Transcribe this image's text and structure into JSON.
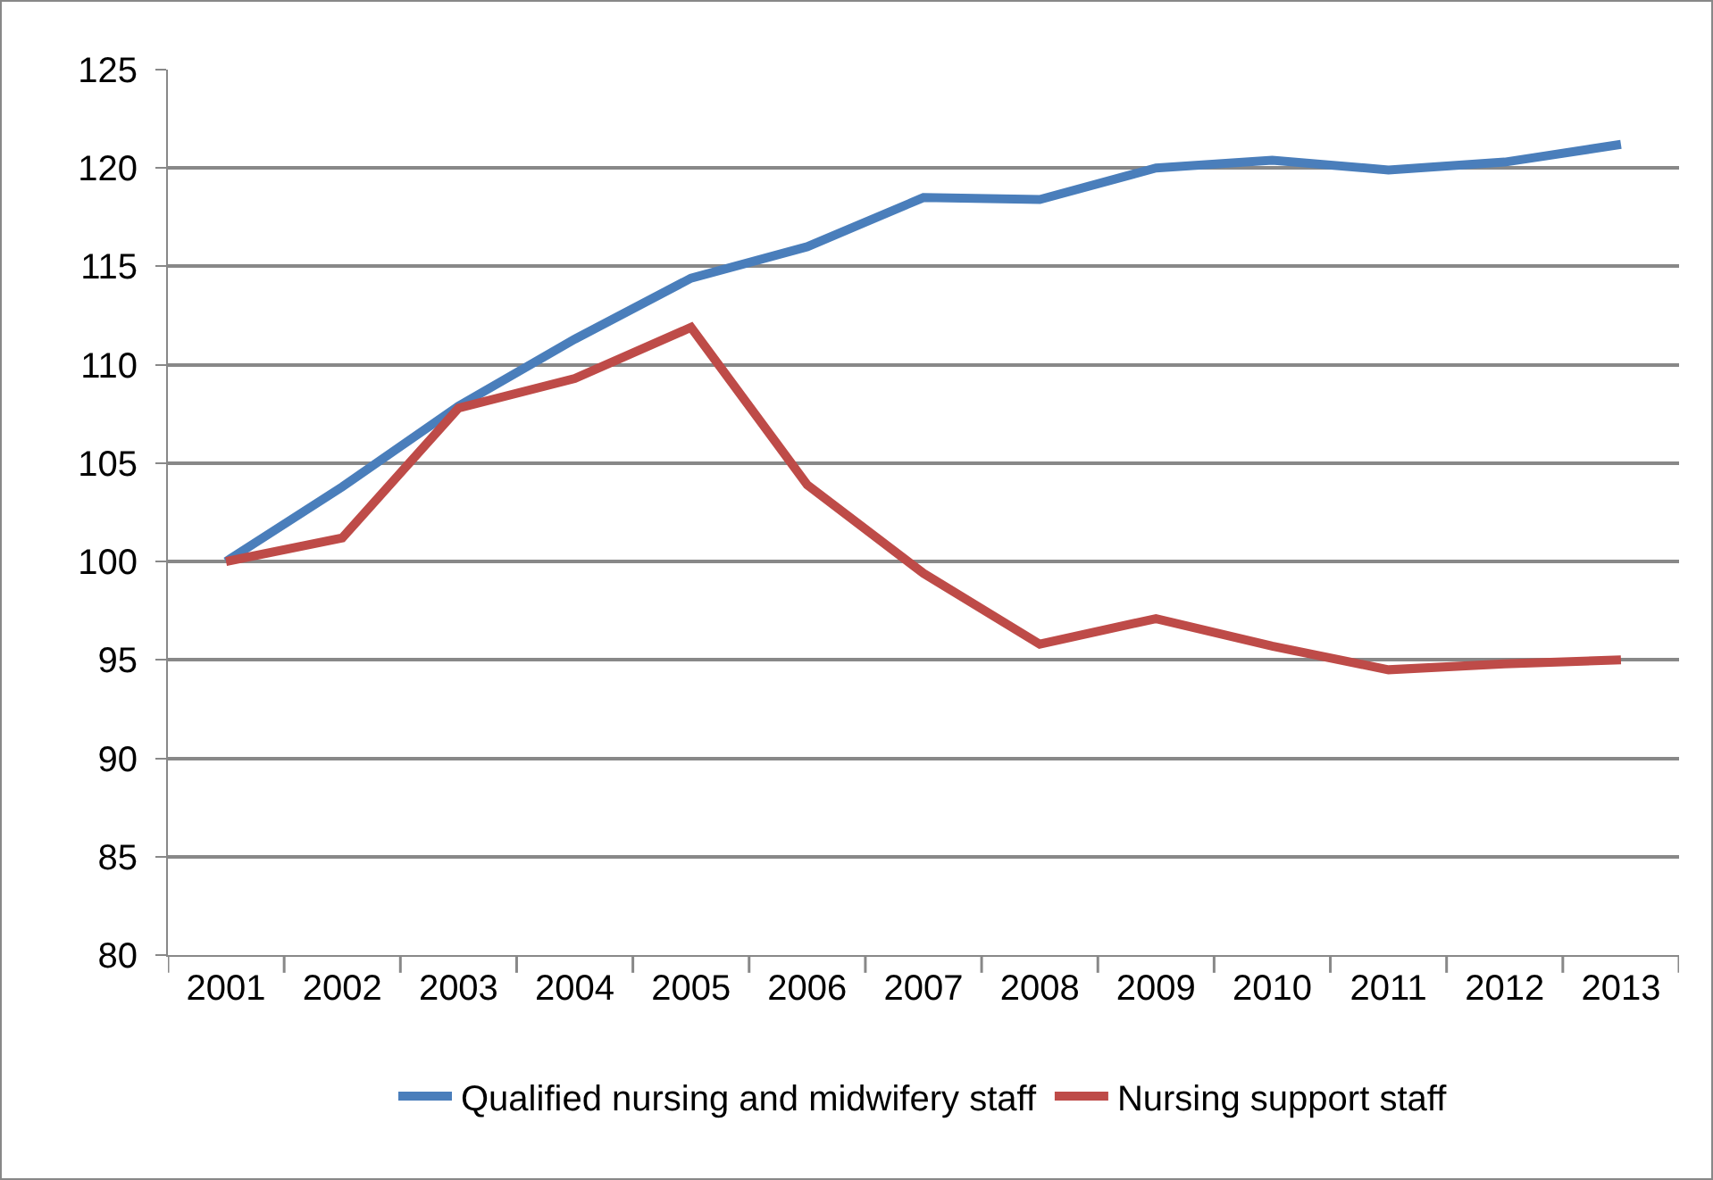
{
  "chart_data": {
    "type": "line",
    "categories": [
      "2001",
      "2002",
      "2003",
      "2004",
      "2005",
      "2006",
      "2007",
      "2008",
      "2009",
      "2010",
      "2011",
      "2012",
      "2013"
    ],
    "series": [
      {
        "name": "Qualified nursing and midwifery staff",
        "color": "#4a7ebb",
        "values": [
          100,
          103.8,
          107.9,
          111.3,
          114.4,
          116.0,
          118.5,
          118.4,
          120.0,
          120.4,
          119.9,
          120.3,
          121.2
        ]
      },
      {
        "name": "Nursing support staff",
        "color": "#be4b48",
        "values": [
          100,
          101.2,
          107.8,
          109.3,
          111.9,
          103.9,
          99.4,
          95.8,
          97.1,
          95.7,
          94.5,
          94.8,
          95.0
        ]
      }
    ],
    "ylim": [
      80,
      125
    ],
    "yticks": [
      80,
      85,
      90,
      95,
      100,
      105,
      110,
      115,
      120,
      125
    ],
    "grid": "y",
    "legend": "bottom",
    "marker": "none",
    "line_style": "solid"
  }
}
